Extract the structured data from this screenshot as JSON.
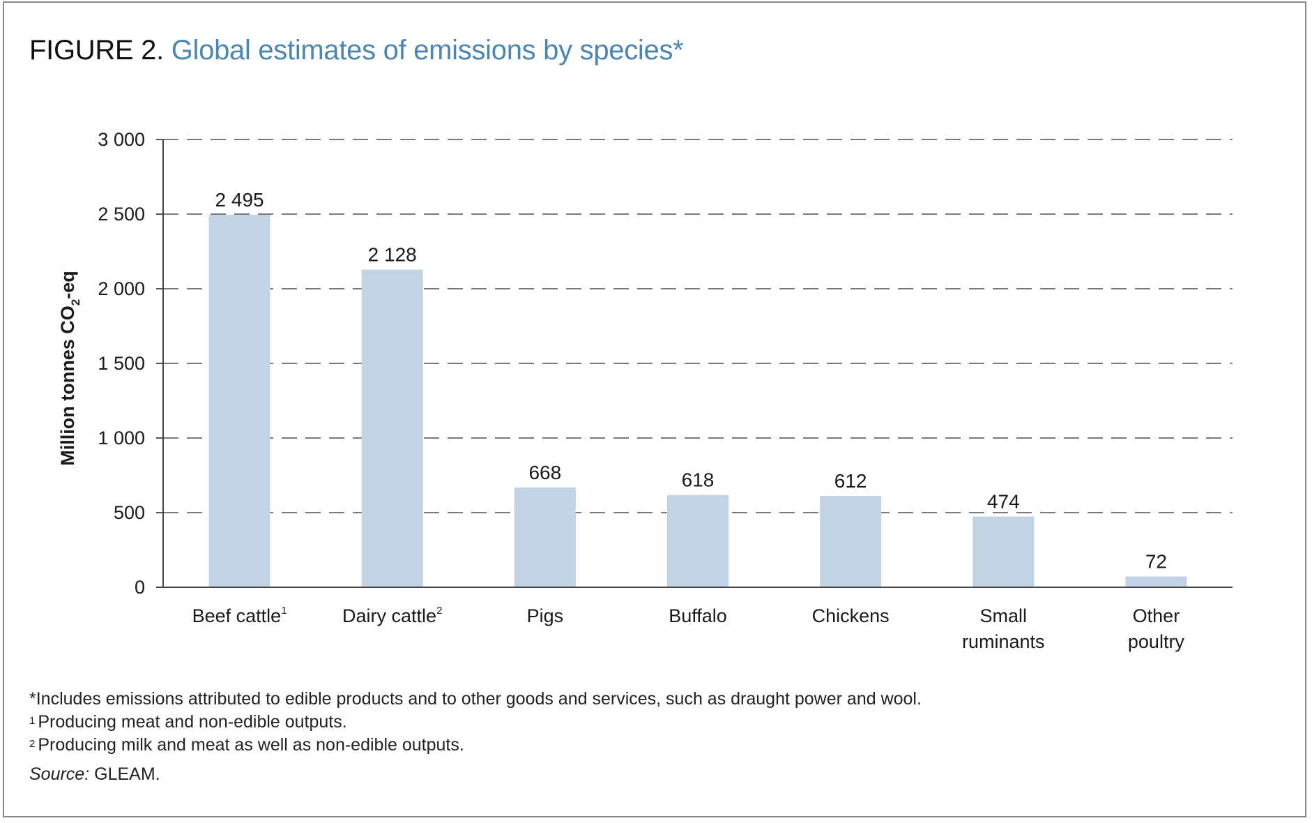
{
  "figure": {
    "label": "FIGURE 2.",
    "caption": "Global estimates of emissions by species*"
  },
  "chart_data": {
    "type": "bar",
    "title": "Global estimates of emissions by species*",
    "ylabel_main": "Million tonnes CO",
    "ylabel_sub": "2",
    "ylabel_tail": "-eq",
    "xlabel": "",
    "ylim": [
      0,
      3000
    ],
    "y_ticks": [
      {
        "value": 0,
        "label": "0"
      },
      {
        "value": 500,
        "label": "500"
      },
      {
        "value": 1000,
        "label": "1 000"
      },
      {
        "value": 1500,
        "label": "1 500"
      },
      {
        "value": 2000,
        "label": "2 000"
      },
      {
        "value": 2500,
        "label": "2 500"
      },
      {
        "value": 3000,
        "label": "3 000"
      }
    ],
    "grid": true,
    "grid_style": "dashed",
    "bar_color": "#c2d3e3",
    "categories": [
      {
        "lines": [
          "Beef cattle"
        ],
        "sup": "1"
      },
      {
        "lines": [
          "Dairy cattle"
        ],
        "sup": "2"
      },
      {
        "lines": [
          "Pigs"
        ],
        "sup": ""
      },
      {
        "lines": [
          "Buffalo"
        ],
        "sup": ""
      },
      {
        "lines": [
          "Chickens"
        ],
        "sup": ""
      },
      {
        "lines": [
          "Small",
          "ruminants"
        ],
        "sup": ""
      },
      {
        "lines": [
          "Other",
          "poultry"
        ],
        "sup": ""
      }
    ],
    "values": [
      2495,
      2128,
      668,
      618,
      612,
      474,
      72
    ],
    "value_labels": [
      "2 495",
      "2 128",
      "668",
      "618",
      "612",
      "474",
      "72"
    ]
  },
  "notes": {
    "asterisk": "*Includes emissions attributed to edible products and to other goods and services, such as draught power and wool.",
    "note1_marker": "1",
    "note1_text": "Producing meat and non-edible outputs.",
    "note2_marker": "2",
    "note2_text": "Producing milk and meat as well as non-edible outputs.",
    "source_label": "Source:",
    "source_value": "GLEAM."
  }
}
